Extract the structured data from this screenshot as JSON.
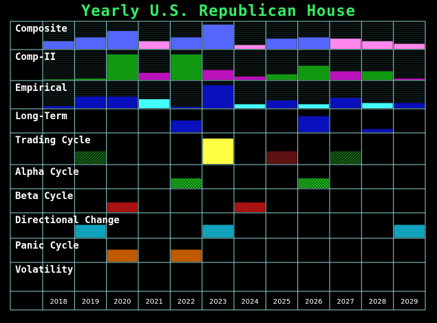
{
  "title": "Yearly U.S. Republican House",
  "colors": {
    "grid": "#8fd3d3",
    "periwinkle": "#5566ff",
    "pink": "#ff88ee",
    "green": "#119911",
    "magenta": "#bb11bb",
    "navy": "#0a10bb",
    "cyan": "#44ffff",
    "yellow": "#ffff44",
    "dark_red_pattern": "#771111",
    "dark_green_pattern": "#0d5a0d",
    "bright_green_pattern": "#22cc22",
    "red_pattern": "#dd2222",
    "teal": "#11a3bb",
    "orange": "#c05a00"
  },
  "chart_data": {
    "type": "heatmap",
    "title": "Yearly U.S. Republican House",
    "years": [
      "2018",
      "2019",
      "2020",
      "2021",
      "2022",
      "2023",
      "2024",
      "2025",
      "2026",
      "2027",
      "2028",
      "2029"
    ],
    "rows": [
      {
        "label": "Composite",
        "kind": "bars",
        "values": [
          0.3,
          0.45,
          0.7,
          0.3,
          0.45,
          0.95,
          0.15,
          0.4,
          0.45,
          0.4,
          0.3,
          0.2
        ],
        "colors": [
          "periwinkle",
          "periwinkle",
          "periwinkle",
          "pink",
          "periwinkle",
          "periwinkle",
          "pink",
          "periwinkle",
          "periwinkle",
          "pink",
          "pink",
          "pink"
        ]
      },
      {
        "label": "Comp-II",
        "kind": "bars",
        "values": [
          0.02,
          0.05,
          0.9,
          0.25,
          0.9,
          0.35,
          0.12,
          0.2,
          0.5,
          0.3,
          0.3,
          0.05
        ],
        "colors": [
          "green",
          "green",
          "green",
          "magenta",
          "green",
          "magenta",
          "magenta",
          "green",
          "green",
          "magenta",
          "green",
          "magenta"
        ]
      },
      {
        "label": "Empirical",
        "kind": "bars",
        "values": [
          0.08,
          0.45,
          0.45,
          0.35,
          0.05,
          0.9,
          0.15,
          0.3,
          0.15,
          0.4,
          0.2,
          0.2
        ],
        "colors": [
          "navy",
          "navy",
          "navy",
          "cyan",
          "navy",
          "navy",
          "cyan",
          "navy",
          "cyan",
          "navy",
          "cyan",
          "navy"
        ]
      },
      {
        "label": "Long-Term",
        "kind": "bars",
        "values": [
          0,
          0,
          0,
          0,
          0.55,
          0,
          0,
          0,
          0.75,
          0,
          0.15,
          0
        ],
        "colors": [
          "navy",
          "navy",
          "navy",
          "navy",
          "navy",
          "navy",
          "navy",
          "navy",
          "navy",
          "navy",
          "navy",
          "navy"
        ]
      },
      {
        "label": "Trading Cycle",
        "kind": "events",
        "events": [
          {
            "year": "2019",
            "size": "small",
            "color": "dark_green_pattern",
            "pattern": true
          },
          {
            "year": "2023",
            "size": "large",
            "color": "yellow",
            "pattern": false
          },
          {
            "year": "2025",
            "size": "small",
            "color": "dark_red_pattern",
            "pattern": true
          },
          {
            "year": "2027",
            "size": "small",
            "color": "dark_green_pattern",
            "pattern": true
          }
        ]
      },
      {
        "label": "Alpha Cycle",
        "kind": "events",
        "events": [
          {
            "year": "2022",
            "size": "small",
            "color": "bright_green_pattern",
            "pattern": true
          },
          {
            "year": "2026",
            "size": "small",
            "color": "bright_green_pattern",
            "pattern": true
          }
        ]
      },
      {
        "label": "Beta Cycle",
        "kind": "events",
        "events": [
          {
            "year": "2020",
            "size": "small",
            "color": "red_pattern",
            "pattern": true
          },
          {
            "year": "2024",
            "size": "small",
            "color": "red_pattern",
            "pattern": true
          }
        ]
      },
      {
        "label": "Directional Change",
        "kind": "events",
        "events": [
          {
            "year": "2019",
            "size": "medium",
            "color": "teal",
            "pattern": false
          },
          {
            "year": "2023",
            "size": "medium",
            "color": "teal",
            "pattern": false
          },
          {
            "year": "2029",
            "size": "medium",
            "color": "teal",
            "pattern": false
          }
        ]
      },
      {
        "label": "Panic Cycle",
        "kind": "events",
        "events": [
          {
            "year": "2020",
            "size": "medium",
            "color": "orange",
            "pattern": false
          },
          {
            "year": "2022",
            "size": "medium",
            "color": "orange",
            "pattern": false
          }
        ]
      },
      {
        "label": "Volatility",
        "kind": "events",
        "events": []
      }
    ]
  }
}
